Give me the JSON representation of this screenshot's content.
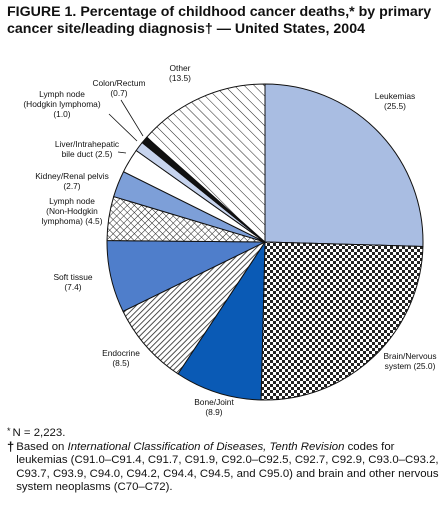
{
  "figure": {
    "title": "FIGURE 1. Percentage of childhood cancer deaths,* by primary cancer site/leading diagnosis† — United States, 2004",
    "footnotes": [
      {
        "mark": "*",
        "text": "N = 2,223."
      },
      {
        "mark": "†",
        "text_before": "Based on ",
        "text_italic": "International Classification of Diseases, Tenth Revision",
        "text_after": " codes for leukemias (C91.0–C91.4, C91.7, C91.9, C92.0–C92.5, C92.7, C92.9, C93.0–C93.2, C93.7, C93.9, C94.0, C94.2, C94.4, C94.5, and C95.0) and brain and other nervous system neoplasms (C70–C72)."
      }
    ]
  },
  "chart_data": {
    "type": "pie",
    "start": "12 o'clock",
    "direction": "clockwise",
    "slices": [
      {
        "name": "Leukemias",
        "value": 25.5,
        "label_lines": [
          "Leukemias",
          "(25.5)"
        ],
        "fill": "#a9bde2",
        "pattern": "solid"
      },
      {
        "name": "Brain/Nervous system",
        "value": 25.0,
        "label_lines": [
          "Brain/Nervous",
          "system (25.0)"
        ],
        "fill": "#ffffff",
        "pattern": "checker"
      },
      {
        "name": "Bone/Joint",
        "value": 8.9,
        "label_lines": [
          "Bone/Joint",
          "(8.9)"
        ],
        "fill": "#0a5ab5",
        "pattern": "solid"
      },
      {
        "name": "Endocrine",
        "value": 8.5,
        "label_lines": [
          "Endocrine",
          "(8.5)"
        ],
        "fill": "#ffffff",
        "pattern": "diagonal"
      },
      {
        "name": "Soft tissue",
        "value": 7.4,
        "label_lines": [
          "Soft tissue",
          "(7.4)"
        ],
        "fill": "#4f7ecb",
        "pattern": "solid"
      },
      {
        "name": "Lymph node (Non-Hodgkin lymphoma)",
        "value": 4.5,
        "label_lines": [
          "Lymph node",
          "(Non-Hodgkin",
          "lymphoma) (4.5)"
        ],
        "fill": "#ffffff",
        "pattern": "crosshatch"
      },
      {
        "name": "Kidney/Renal pelvis",
        "value": 2.7,
        "label_lines": [
          "Kidney/Renal pelvis",
          "(2.7)"
        ],
        "fill": "#7d9fd8",
        "pattern": "solid"
      },
      {
        "name": "Liver/Intrahepatic bile duct",
        "value": 2.5,
        "label_lines": [
          "Liver/Intrahepatic",
          "bile duct (2.5)"
        ],
        "fill": "#ffffff",
        "pattern": "solid"
      },
      {
        "name": "Lymph node (Hodgkin lymphoma)",
        "value": 1.0,
        "label_lines": [
          "Lymph node",
          "(Hodgkin lymphoma)",
          "(1.0)"
        ],
        "fill": "#c7d4ee",
        "pattern": "solid"
      },
      {
        "name": "Colon/Rectum",
        "value": 0.7,
        "label_lines": [
          "Colon/Rectum",
          "(0.7)"
        ],
        "fill": "#111111",
        "pattern": "solid"
      },
      {
        "name": "Other",
        "value": 13.5,
        "label_lines": [
          "Other",
          "(13.5)"
        ],
        "fill": "#ffffff",
        "pattern": "wide-diagonal"
      }
    ]
  }
}
